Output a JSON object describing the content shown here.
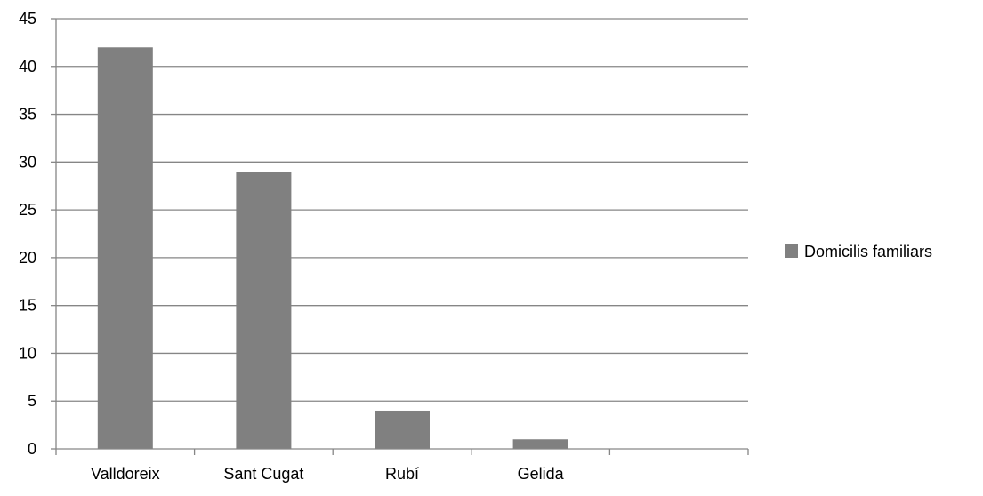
{
  "chart_data": {
    "type": "bar",
    "categories": [
      "Valldoreix",
      "Sant Cugat",
      "Rubí",
      "Gelida",
      ""
    ],
    "series": [
      {
        "name": "Domicilis familiars",
        "values": [
          42,
          29,
          4,
          1,
          0
        ]
      }
    ],
    "title": "",
    "xlabel": "",
    "ylabel": "",
    "ylim": [
      0,
      45
    ],
    "yticks": [
      "0",
      "5",
      "10",
      "15",
      "20",
      "25",
      "30",
      "35",
      "40",
      "45"
    ],
    "grid": true,
    "legend": "right",
    "colors": {
      "bar": "#808080",
      "grid": "#868686",
      "axis": "#868686",
      "text": "#000000"
    }
  }
}
